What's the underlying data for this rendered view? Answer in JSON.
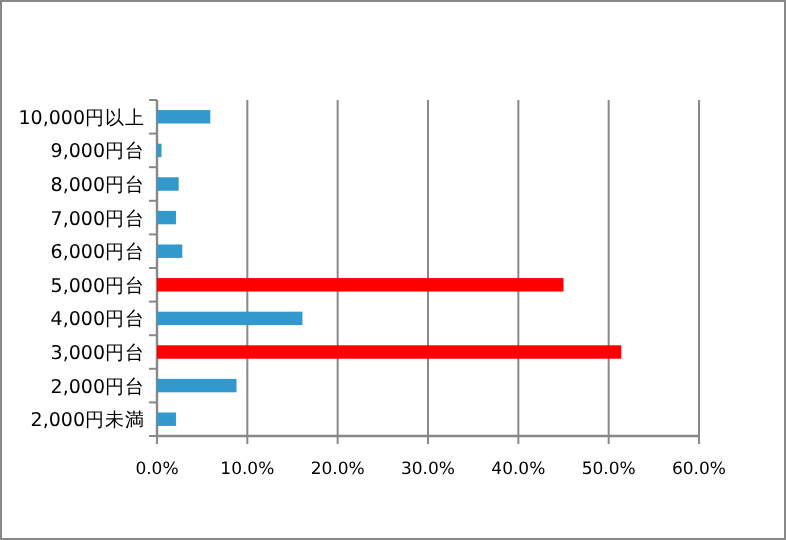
{
  "chart_data": {
    "type": "bar",
    "orientation": "horizontal",
    "categories": [
      "10,000円以上",
      "9,000円台",
      "8,000円台",
      "7,000円台",
      "6,000円台",
      "5,000円台",
      "4,000円台",
      "3,000円台",
      "2,000円台",
      "2,000円未満"
    ],
    "values": [
      5.9,
      0.5,
      2.4,
      2.1,
      2.8,
      45.0,
      16.1,
      51.4,
      8.8,
      2.1
    ],
    "colors": [
      "#3399cc",
      "#3399cc",
      "#3399cc",
      "#3399cc",
      "#3399cc",
      "#ff0000",
      "#3399cc",
      "#ff0000",
      "#3399cc",
      "#3399cc"
    ],
    "xlim": [
      0,
      60
    ],
    "xticks": [
      {
        "value": 0,
        "label": "0.0%"
      },
      {
        "value": 10,
        "label": "10.0%"
      },
      {
        "value": 20,
        "label": "20.0%"
      },
      {
        "value": 30,
        "label": "30.0%"
      },
      {
        "value": 40,
        "label": "40.0%"
      },
      {
        "value": 50,
        "label": "50.0%"
      },
      {
        "value": 60,
        "label": "60.0%"
      }
    ],
    "grid": "x"
  }
}
